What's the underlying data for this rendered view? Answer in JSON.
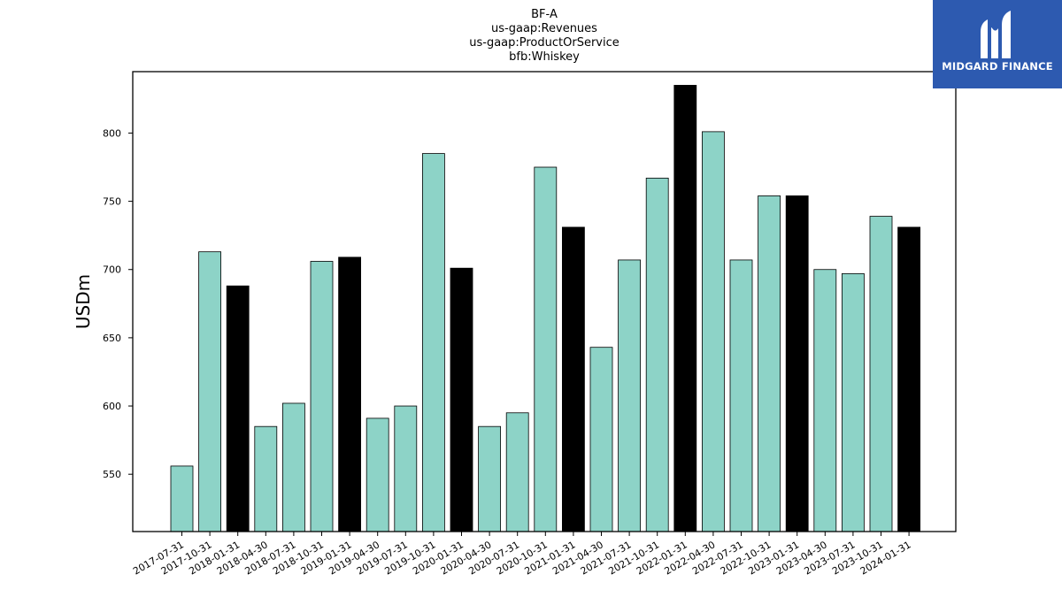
{
  "chart_data": {
    "type": "bar",
    "title_lines": [
      "BF-A",
      "us-gaap:Revenues",
      "us-gaap:ProductOrService",
      "bfb:Whiskey"
    ],
    "ylabel": "USDm",
    "xlabel": "",
    "categories": [
      "2017-07-31",
      "2017-10-31",
      "2018-01-31",
      "2018-04-30",
      "2018-07-31",
      "2018-10-31",
      "2019-01-31",
      "2019-04-30",
      "2019-07-31",
      "2019-10-31",
      "2020-01-31",
      "2020-04-30",
      "2020-07-31",
      "2020-10-31",
      "2021-01-31",
      "2021-04-30",
      "2021-07-31",
      "2021-10-31",
      "2022-01-31",
      "2022-04-30",
      "2022-07-31",
      "2022-10-31",
      "2023-01-31",
      "2023-04-30",
      "2023-07-31",
      "2023-10-31",
      "2024-01-31"
    ],
    "values": [
      556,
      713,
      688,
      585,
      602,
      706,
      709,
      591,
      600,
      785,
      701,
      585,
      595,
      775,
      731,
      643,
      707,
      767,
      835,
      801,
      707,
      754,
      754,
      700,
      697,
      739,
      731
    ],
    "highlight": [
      false,
      false,
      true,
      false,
      false,
      false,
      true,
      false,
      false,
      false,
      true,
      false,
      false,
      false,
      true,
      false,
      false,
      false,
      true,
      false,
      false,
      false,
      true,
      false,
      false,
      false,
      true
    ],
    "colors": {
      "default": "#8dd3c7",
      "highlight": "#000000",
      "edge": "#000000"
    },
    "ylim": [
      508,
      845
    ],
    "yticks": [
      550,
      600,
      650,
      700,
      750,
      800
    ],
    "grid": false
  },
  "logo": {
    "text": "MIDGARD FINANCE",
    "background": "#2d5ab0"
  }
}
